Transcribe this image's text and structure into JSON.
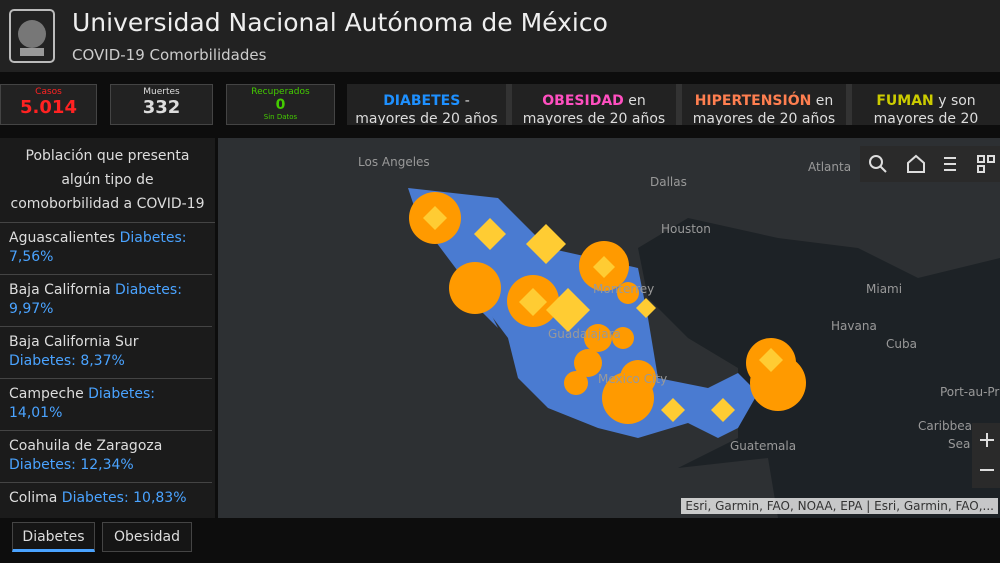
{
  "header": {
    "title": "Universidad Nacional Autónoma de México",
    "subtitle": "COVID-19 Comorbilidades"
  },
  "indicators": [
    {
      "label": "Casos",
      "value": "5.014"
    },
    {
      "label": "Muertes",
      "value": "332"
    },
    {
      "label": "Recuperados",
      "value": "0",
      "note": "Sin Datos"
    }
  ],
  "panels": [
    {
      "keyword": "DIABETES",
      "text": "-",
      "line2": "mayores de 20 años"
    },
    {
      "keyword": "OBESIDAD",
      "text": "en",
      "line2": "mayores de 20 años"
    },
    {
      "keyword": "HIPERTENSIÓN",
      "text": "en",
      "line2": "mayores de 20 años"
    },
    {
      "keyword": "FUMAN",
      "text": "y son",
      "line2": "mayores de 20"
    }
  ],
  "list": {
    "title": "Población que presenta algún tipo de comoborbilidad a COVID-19",
    "items": [
      {
        "state": "Aguascalientes",
        "label": "Diabetes:",
        "value": "7,56%"
      },
      {
        "state": "Baja California",
        "label": "Diabetes:",
        "value": "9,97%"
      },
      {
        "state": "Baja California Sur",
        "label": "Diabetes:",
        "value": "8,37%"
      },
      {
        "state": "Campeche",
        "label": "Diabetes:",
        "value": "14,01%"
      },
      {
        "state": "Coahuila de Zaragoza",
        "label": "Diabetes:",
        "value": "12,34%"
      },
      {
        "state": "Colima",
        "label": "Diabetes:",
        "value": "10,83%"
      }
    ]
  },
  "map": {
    "places": [
      "Los Angeles",
      "Dallas",
      "Houston",
      "Atlanta",
      "Miami",
      "Havana",
      "Cuba",
      "Port-au-Pr",
      "Guatemala",
      "Caribbean",
      "Sea",
      "Monterrey",
      "Guadalajara",
      "Mexico City"
    ],
    "attribution": "Esri, Garmin, FAO, NOAA, EPA | Esri, Garmin, FAO,..."
  },
  "tabs": [
    "Diabetes",
    "Obesidad"
  ]
}
